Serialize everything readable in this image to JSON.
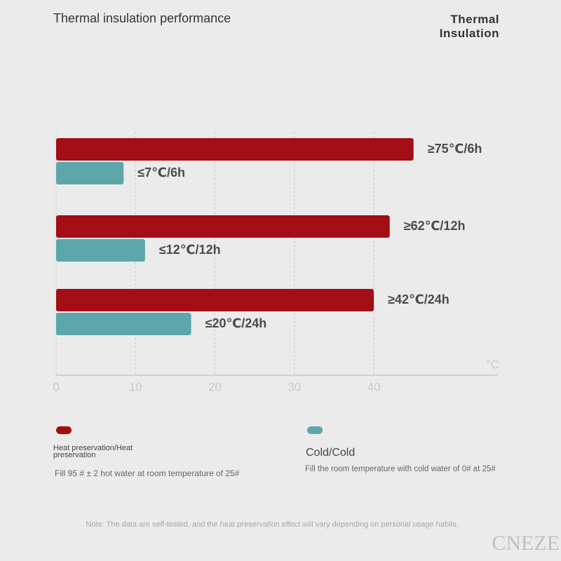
{
  "header": {
    "title": "Thermal insulation performance",
    "badge": "Thermal Insulation"
  },
  "chart_data": {
    "type": "barh",
    "series": [
      {
        "name": "Heat preservation/Heat preservation",
        "color": "#a30d15",
        "values": [
          45,
          42,
          40
        ],
        "labels": [
          "≥75℃/6h",
          "≥62℃/12h",
          "≥42℃/24h"
        ],
        "description": "Fill 95 # ± 2 hot water at room temperature of 25#"
      },
      {
        "name": "Cold/Cold",
        "color": "#5ba7ac",
        "values": [
          8.5,
          11.2,
          17
        ],
        "labels": [
          "≤7℃/6h",
          "≤12℃/12h",
          "≤20℃/24h"
        ],
        "description": "Fill the room temperature with cold water of 0# at 25#"
      }
    ],
    "xlim": [
      0,
      55
    ],
    "xticks": [
      0,
      10,
      20,
      30,
      40
    ],
    "x_unit": "°C",
    "grid": true
  },
  "footer": {
    "note": "Note: The data are self-tested, and the heat preservation effect will vary depending on personal usage habits.",
    "watermark": "CNEZE"
  }
}
